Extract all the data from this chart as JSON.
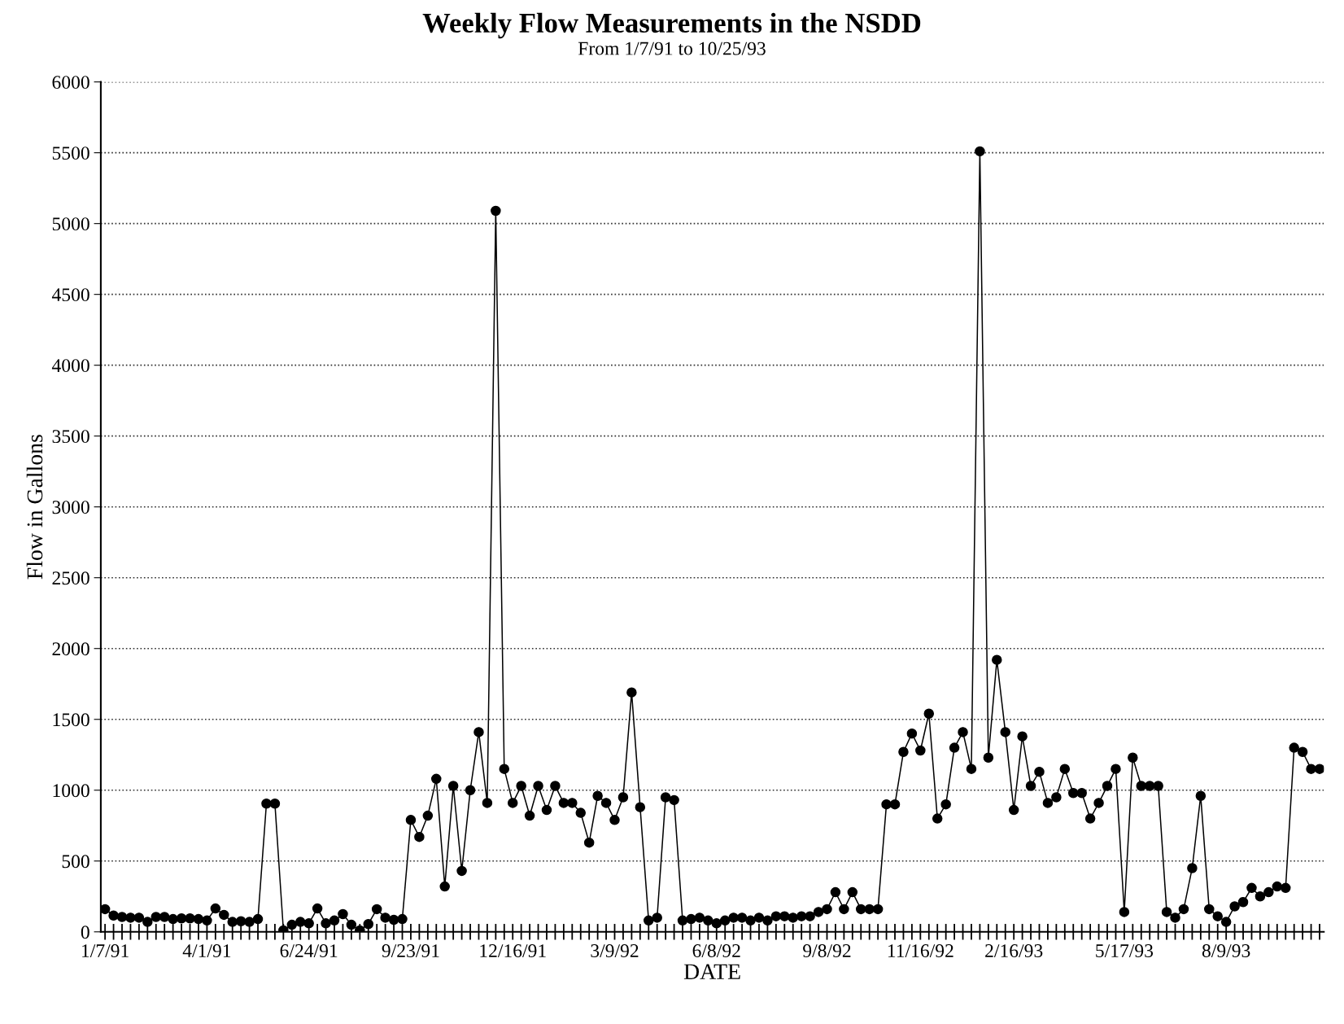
{
  "chart_data": {
    "type": "line",
    "title": "Weekly Flow Measurements in the NSDD",
    "subtitle": "From 1/7/91 to 10/25/93",
    "xlabel": "DATE",
    "ylabel": "Flow in Gallons",
    "categories": [
      "1/7/91",
      null,
      null,
      null,
      null,
      null,
      null,
      null,
      null,
      null,
      null,
      null,
      "4/1/91",
      null,
      null,
      null,
      null,
      null,
      null,
      null,
      null,
      null,
      null,
      null,
      "6/24/91",
      null,
      null,
      null,
      null,
      null,
      null,
      null,
      null,
      null,
      null,
      null,
      "9/23/91",
      null,
      null,
      null,
      null,
      null,
      null,
      null,
      null,
      null,
      null,
      null,
      "12/16/91",
      null,
      null,
      null,
      null,
      null,
      null,
      null,
      null,
      null,
      null,
      null,
      "3/9/92",
      null,
      null,
      null,
      null,
      null,
      null,
      null,
      null,
      null,
      null,
      null,
      "6/8/92",
      null,
      null,
      null,
      null,
      null,
      null,
      null,
      null,
      null,
      null,
      null,
      null,
      "9/8/92",
      null,
      null,
      null,
      null,
      null,
      null,
      null,
      null,
      null,
      null,
      "11/16/92",
      null,
      null,
      null,
      null,
      null,
      null,
      null,
      null,
      null,
      null,
      "2/16/93",
      null,
      null,
      null,
      null,
      null,
      null,
      null,
      null,
      null,
      null,
      null,
      null,
      "5/17/93",
      null,
      null,
      null,
      null,
      null,
      null,
      null,
      null,
      null,
      null,
      null,
      "8/9/93",
      null,
      null,
      null,
      null,
      null,
      null,
      null,
      null,
      null,
      null,
      null
    ],
    "series": [
      {
        "color": "#000000",
        "values": [
          160,
          115,
          105,
          100,
          100,
          70,
          105,
          105,
          90,
          95,
          95,
          90,
          80,
          165,
          120,
          70,
          75,
          70,
          90,
          905,
          905,
          10,
          50,
          70,
          60,
          165,
          60,
          80,
          125,
          50,
          10,
          55,
          160,
          100,
          85,
          90,
          790,
          670,
          820,
          1080,
          320,
          1030,
          430,
          1000,
          1410,
          910,
          5090,
          1150,
          910,
          1030,
          820,
          1030,
          860,
          1030,
          910,
          910,
          840,
          630,
          960,
          910,
          790,
          950,
          1690,
          880,
          80,
          100,
          950,
          930,
          80,
          90,
          100,
          80,
          60,
          80,
          100,
          100,
          80,
          100,
          80,
          110,
          110,
          100,
          110,
          110,
          140,
          160,
          280,
          160,
          280,
          160,
          160,
          160,
          900,
          900,
          1270,
          1400,
          1280,
          1540,
          800,
          900,
          1300,
          1410,
          1150,
          5510,
          1230,
          1920,
          1410,
          860,
          1380,
          1030,
          1130,
          910,
          950,
          1150,
          980,
          980,
          800,
          910,
          1030,
          1150,
          140,
          1230,
          1030,
          1030,
          1030,
          140,
          100,
          160,
          450,
          960,
          160,
          110,
          70,
          180,
          210,
          310,
          250,
          280,
          320,
          310,
          1300,
          1270,
          1150,
          1150
        ]
      }
    ],
    "ylim": [
      0,
      6000
    ],
    "yticks": [
      0,
      500,
      1000,
      1500,
      2000,
      2500,
      3000,
      3500,
      4000,
      4500,
      5000,
      5500,
      6000
    ],
    "grid": "y",
    "marker": "circle",
    "line_style": "solid"
  }
}
